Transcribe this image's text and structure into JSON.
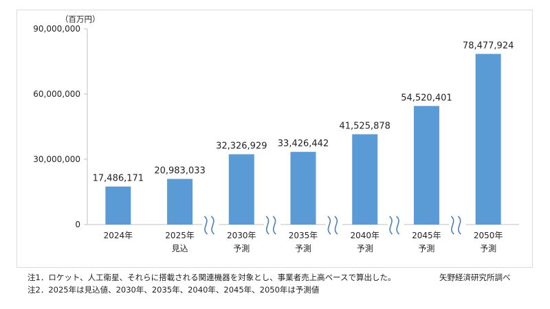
{
  "chart_data": {
    "type": "bar",
    "unit_label": "（百万円）",
    "categories": [
      "2024年",
      "2025年",
      "2030年",
      "2035年",
      "2040年",
      "2045年",
      "2050年"
    ],
    "category_sublabels": [
      "",
      "見込",
      "予測",
      "予測",
      "予測",
      "予測",
      "予測"
    ],
    "values": [
      17486171,
      20983033,
      32326929,
      33426442,
      41525878,
      54520401,
      78477924
    ],
    "value_labels": [
      "17,486,171",
      "20,983,033",
      "32,326,929",
      "33,426,442",
      "41,525,878",
      "54,520,401",
      "78,477,924"
    ],
    "yticks": [
      0,
      30000000,
      60000000,
      90000000
    ],
    "ytick_labels": [
      "0",
      "30,000,000",
      "60,000,000",
      "90,000,000"
    ],
    "ylim": [
      0,
      90000000
    ],
    "axis_break_after": [
      "2025年",
      "2030年",
      "2035年",
      "2040年",
      "2045年"
    ],
    "bar_color": "#5b9bd5",
    "break_color": "#4a7ebb",
    "grid": false,
    "legend": "none"
  },
  "notes": {
    "note1": "注1．ロケット、人工衛星、それらに搭載される関連機器を対象とし、事業者売上高ベースで算出した。",
    "note2": "注2．2025年は見込値、2030年、2035年、2040年、2045年、2050年は予測値",
    "source": "矢野経済研究所調べ"
  }
}
